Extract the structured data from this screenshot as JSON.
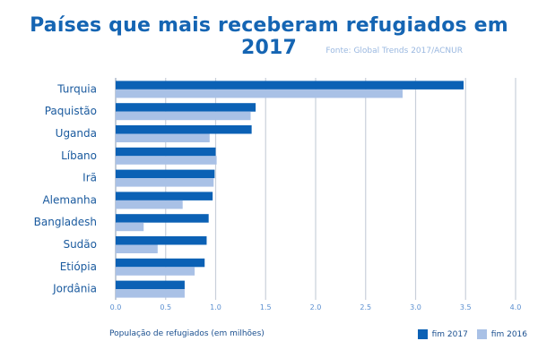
{
  "title": "Países que mais receberam refugiados em 2017",
  "source": "Fonte: Global Trends 2017/ACNUR",
  "chart_data": {
    "type": "bar",
    "orientation": "horizontal",
    "title": "Países que mais receberam refugiados em 2017",
    "xlabel": "População de refugiados (em milhões)",
    "ylabel": "",
    "xlim": [
      0,
      4
    ],
    "ticks": [
      "0.0",
      "0.5",
      "1.0",
      "1.5",
      "2.0",
      "2.5",
      "3.0",
      "3.5",
      "4.0"
    ],
    "grid": true,
    "legend_position": "bottom-right",
    "categories": [
      "Turquia",
      "Paquistão",
      "Uganda",
      "Líbano",
      "Irã",
      "Alemanha",
      "Bangladesh",
      "Sudão",
      "Etiópia",
      "Jordânia"
    ],
    "series": [
      {
        "name": "fim 2017",
        "color": "#0b61b5",
        "values": [
          3.48,
          1.4,
          1.36,
          1.0,
          0.99,
          0.97,
          0.93,
          0.91,
          0.89,
          0.69
        ]
      },
      {
        "name": "fim 2016",
        "color": "#a9c1e6",
        "values": [
          2.87,
          1.35,
          0.94,
          1.01,
          0.98,
          0.67,
          0.28,
          0.42,
          0.79,
          0.69
        ]
      }
    ]
  }
}
